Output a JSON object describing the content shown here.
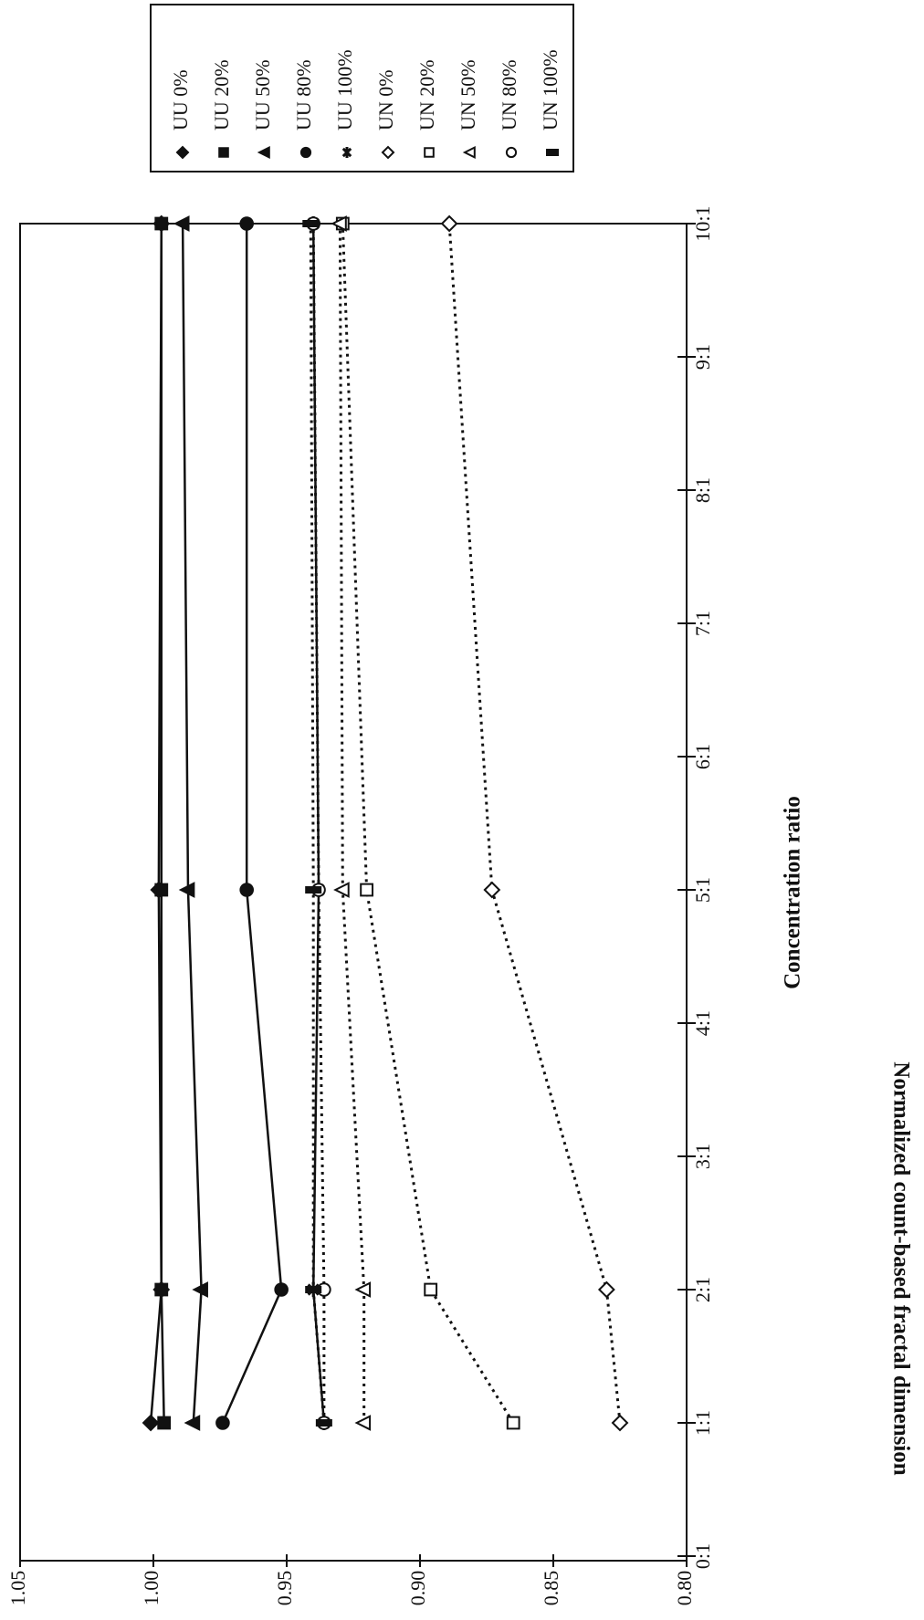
{
  "chart_data": {
    "type": "line",
    "x_label": "Concentration ratio",
    "y_label": "Normalized count-based fractal dimension",
    "x": [
      1,
      2,
      5,
      10
    ],
    "xlim": [
      0,
      10
    ],
    "xticks": [
      {
        "value": 0,
        "label": "0:1"
      },
      {
        "value": 1,
        "label": "1:1"
      },
      {
        "value": 2,
        "label": "2:1"
      },
      {
        "value": 3,
        "label": "3:1"
      },
      {
        "value": 4,
        "label": "4:1"
      },
      {
        "value": 5,
        "label": "5:1"
      },
      {
        "value": 6,
        "label": "6:1"
      },
      {
        "value": 7,
        "label": "7:1"
      },
      {
        "value": 8,
        "label": "8:1"
      },
      {
        "value": 9,
        "label": "9:1"
      },
      {
        "value": 10,
        "label": "10:1"
      }
    ],
    "ylim": [
      0.8,
      1.05
    ],
    "yticks": [
      {
        "value": 0.8,
        "label": "0.80"
      },
      {
        "value": 0.85,
        "label": "0.85"
      },
      {
        "value": 0.9,
        "label": "0.90"
      },
      {
        "value": 0.95,
        "label": "0.95"
      },
      {
        "value": 1.0,
        "label": "1.00"
      },
      {
        "value": 1.05,
        "label": "1.05"
      }
    ],
    "series": [
      {
        "name": "UU 0%",
        "color": "#111",
        "marker": "diamond",
        "filled": true,
        "line_style": "solid",
        "values": [
          1.001,
          0.997,
          0.998,
          0.997
        ]
      },
      {
        "name": "UU 20%",
        "color": "#111",
        "marker": "square",
        "filled": true,
        "line_style": "solid",
        "values": [
          0.996,
          0.997,
          0.997,
          0.997
        ]
      },
      {
        "name": "UU 50%",
        "color": "#111",
        "marker": "triangle",
        "filled": true,
        "line_style": "solid",
        "values": [
          0.985,
          0.982,
          0.987,
          0.989
        ]
      },
      {
        "name": "UU 80%",
        "color": "#111",
        "marker": "circle",
        "filled": true,
        "line_style": "solid",
        "values": [
          0.974,
          0.952,
          0.965,
          0.965
        ]
      },
      {
        "name": "UU 100%",
        "color": "#111",
        "marker": "star",
        "filled": true,
        "line_style": "solid",
        "values": [
          0.936,
          0.94,
          0.938,
          0.94
        ]
      },
      {
        "name": "UN 0%",
        "color": "#111",
        "marker": "diamond",
        "filled": false,
        "line_style": "dotted",
        "values": [
          0.825,
          0.83,
          0.873,
          0.889
        ]
      },
      {
        "name": "UN 20%",
        "color": "#111",
        "marker": "square",
        "filled": false,
        "line_style": "dotted",
        "values": [
          0.865,
          0.896,
          0.92,
          0.929
        ]
      },
      {
        "name": "UN 50%",
        "color": "#111",
        "marker": "triangle",
        "filled": false,
        "line_style": "dotted",
        "values": [
          0.921,
          0.921,
          0.929,
          0.93
        ]
      },
      {
        "name": "UN 80%",
        "color": "#111",
        "marker": "circle",
        "filled": false,
        "line_style": "dotted",
        "values": [
          0.936,
          0.936,
          0.938,
          0.94
        ]
      },
      {
        "name": "UN 100%",
        "color": "#111",
        "marker": "dash",
        "filled": true,
        "line_style": "dotted",
        "values": [
          0.936,
          0.94,
          0.94,
          0.941
        ]
      }
    ]
  }
}
